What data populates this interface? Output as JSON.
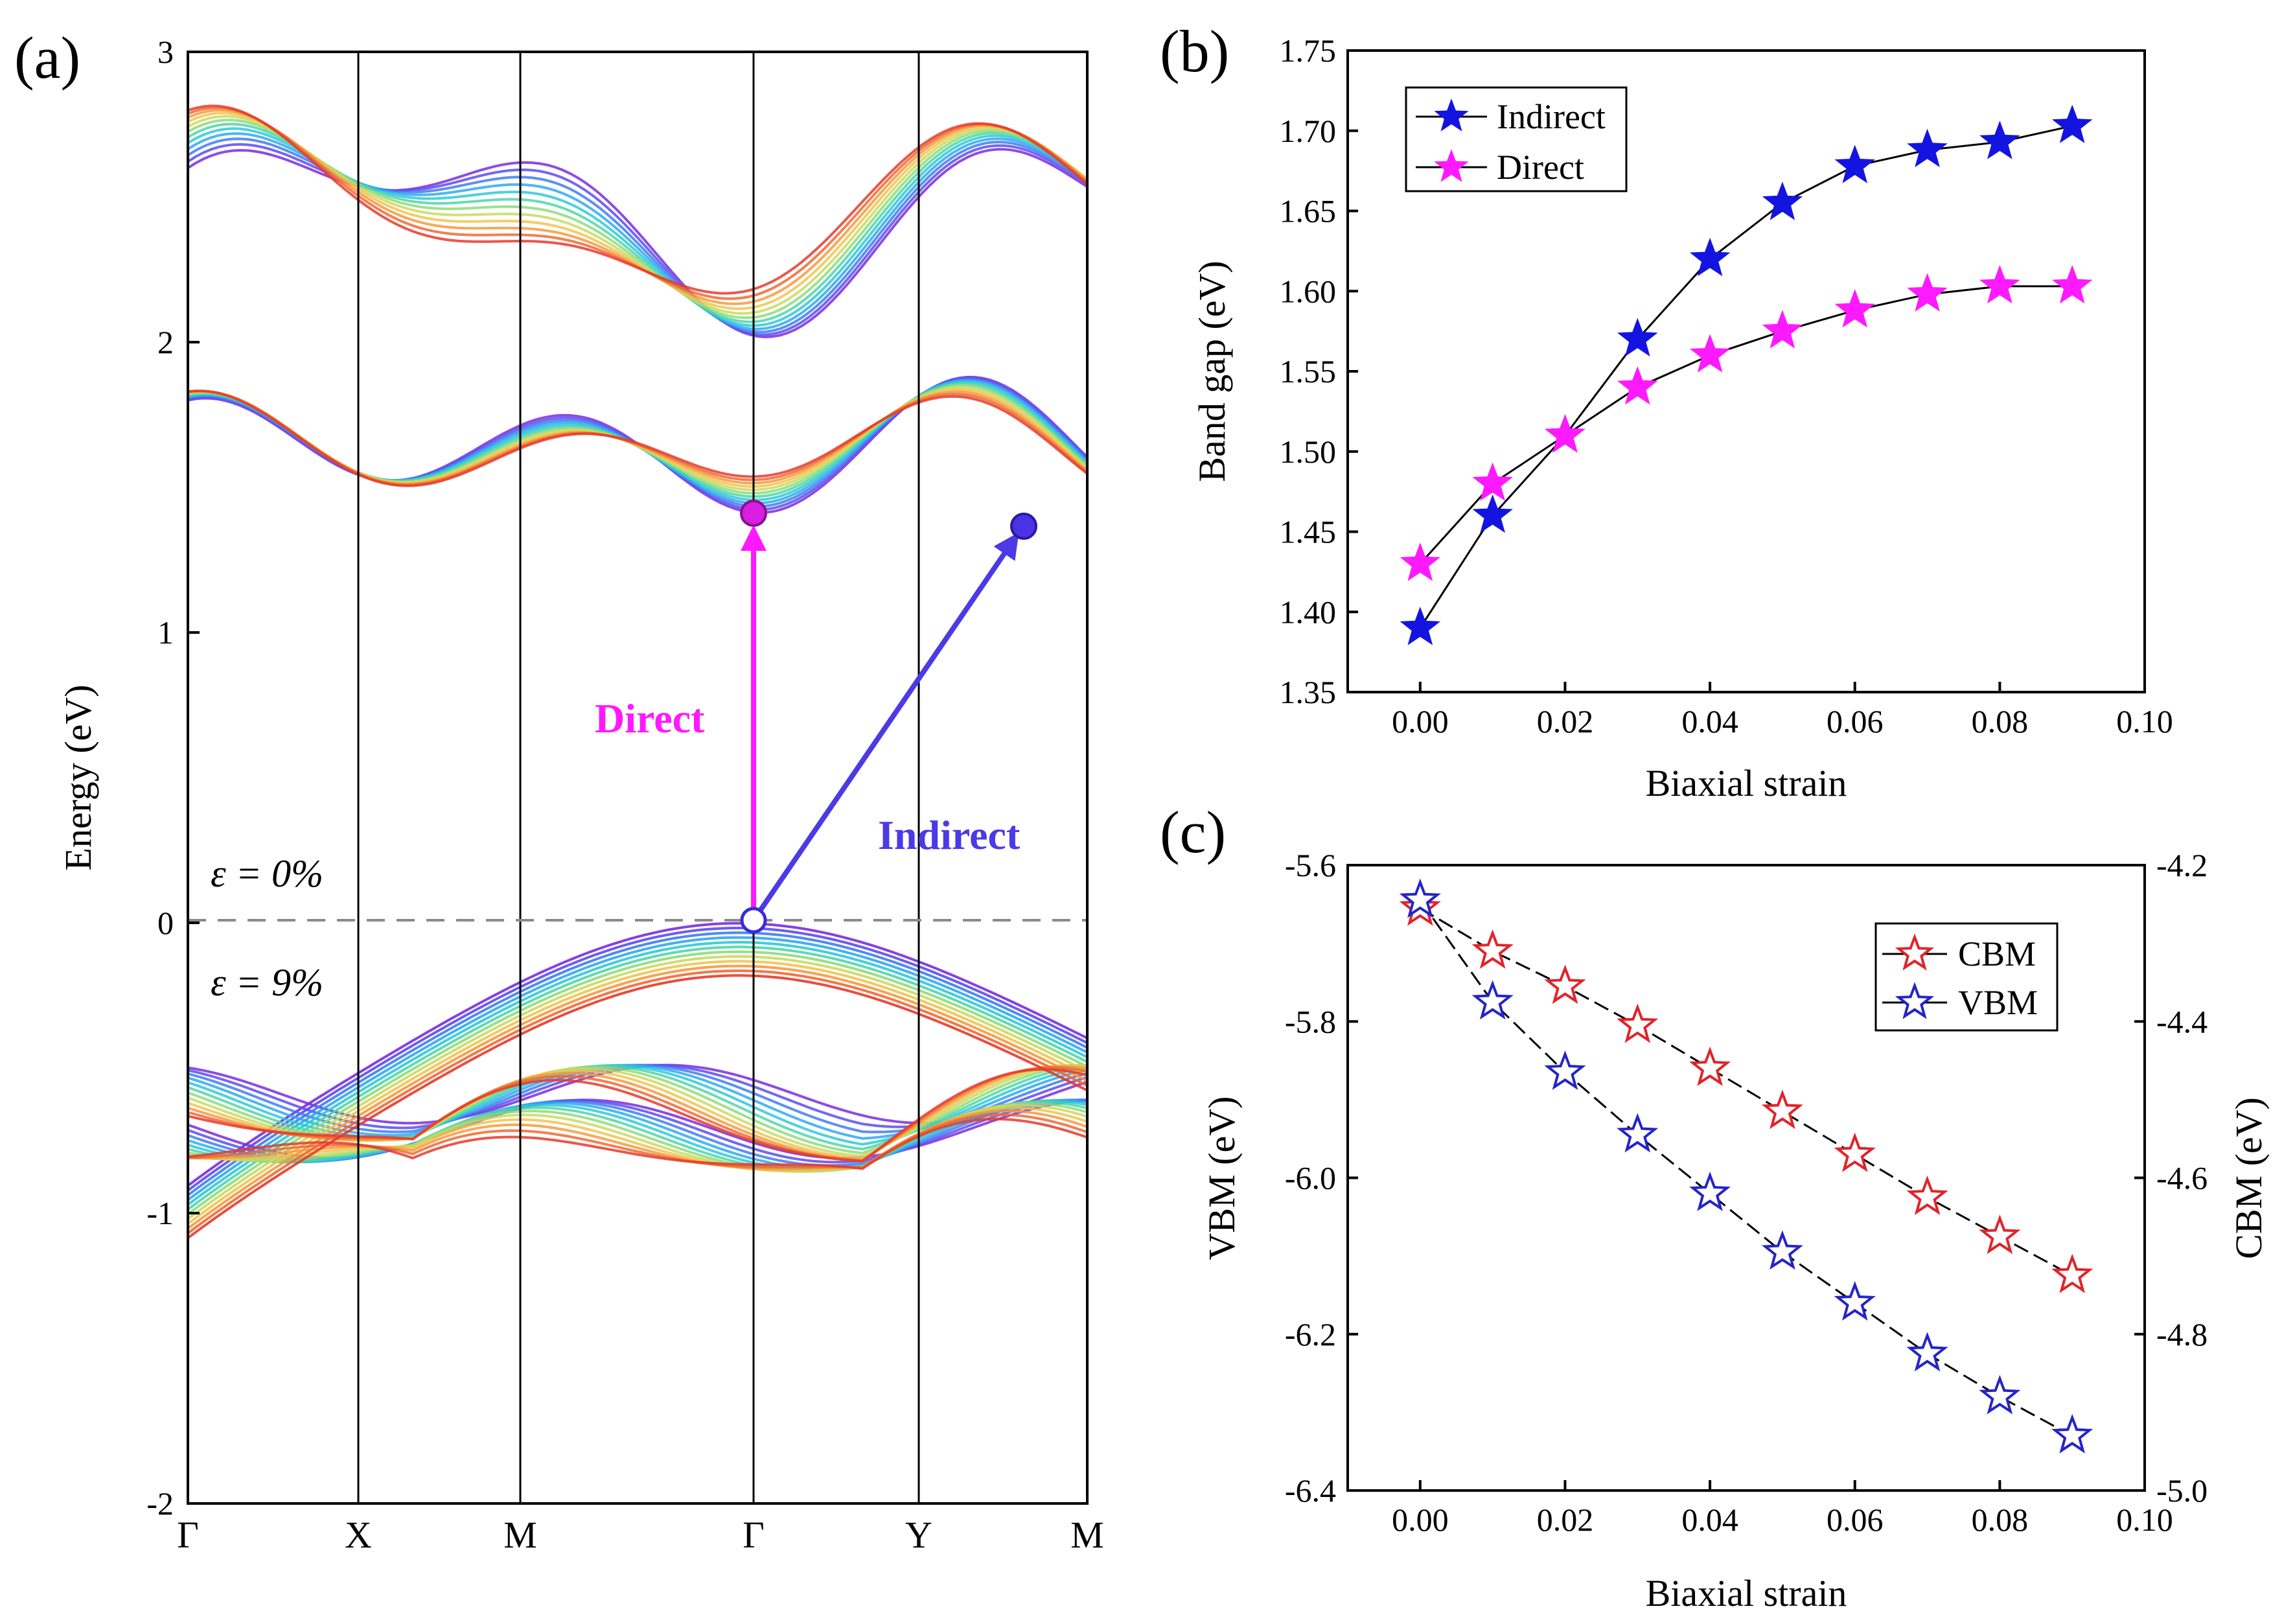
{
  "colors": {
    "indirect": "#1414e0",
    "direct": "#ff19ff",
    "cbm": "#e0242a",
    "vbm": "#2424c8",
    "arrow_direct": "#ff19ff",
    "arrow_indirect": "#4b3ae6"
  },
  "chart_data": [
    {
      "panel": "(a)",
      "type": "line",
      "ylabel": "Energy (eV)",
      "ylim": [
        -2,
        3
      ],
      "yticks": [
        "-2",
        "-1",
        "0",
        "1",
        "2",
        "3"
      ],
      "kpoints": [
        "Γ",
        "X",
        "M",
        "Γ",
        "Y",
        "M"
      ],
      "fermi_level": 0,
      "strain_labels": [
        "ε = 0%",
        "ε = 9%"
      ],
      "annotations": {
        "direct": "Direct",
        "indirect": "Indirect"
      },
      "band_edges": {
        "vbm_gamma": 0,
        "cbm_gamma": 1.4,
        "cbm_ym": 1.36
      }
    },
    {
      "panel": "(b)",
      "type": "line",
      "xlabel": "Biaxial strain",
      "ylabel": "Band gap (eV)",
      "xlim": [
        -0.01,
        0.1
      ],
      "ylim": [
        1.35,
        1.75
      ],
      "xticks": [
        "0.00",
        "0.02",
        "0.04",
        "0.06",
        "0.08",
        "0.10"
      ],
      "yticks": [
        "1.35",
        "1.40",
        "1.45",
        "1.50",
        "1.55",
        "1.60",
        "1.65",
        "1.70",
        "1.75"
      ],
      "x": [
        0.0,
        0.01,
        0.02,
        0.03,
        0.04,
        0.05,
        0.06,
        0.07,
        0.08,
        0.09
      ],
      "series": [
        {
          "name": "Indirect",
          "values": [
            1.39,
            1.46,
            1.51,
            1.57,
            1.62,
            1.655,
            1.678,
            1.688,
            1.693,
            1.703
          ]
        },
        {
          "name": "Direct",
          "values": [
            1.43,
            1.48,
            1.51,
            1.54,
            1.56,
            1.575,
            1.588,
            1.598,
            1.603,
            1.603
          ]
        }
      ]
    },
    {
      "panel": "(c)",
      "type": "line",
      "xlabel": "Biaxial strain",
      "ylabel_left": "VBM (eV)",
      "ylabel_right": "CBM (eV)",
      "xlim": [
        -0.01,
        0.1
      ],
      "ylim_left": [
        -6.4,
        -5.6
      ],
      "ylim_right": [
        -5.0,
        -4.2
      ],
      "xticks": [
        "0.00",
        "0.02",
        "0.04",
        "0.06",
        "0.08",
        "0.10"
      ],
      "yticks_left": [
        "-6.4",
        "-6.2",
        "-6.0",
        "-5.8",
        "-5.6"
      ],
      "yticks_right": [
        "-5.0",
        "-4.8",
        "-4.6",
        "-4.4",
        "-4.2"
      ],
      "x": [
        0.0,
        0.01,
        0.02,
        0.03,
        0.04,
        0.05,
        0.06,
        0.07,
        0.08,
        0.09
      ],
      "series": [
        {
          "name": "CBM",
          "axis": "right",
          "values": [
            -4.255,
            -4.31,
            -4.355,
            -4.405,
            -4.46,
            -4.515,
            -4.57,
            -4.625,
            -4.675,
            -4.725
          ]
        },
        {
          "name": "VBM",
          "axis": "left",
          "values": [
            -5.645,
            -5.775,
            -5.865,
            -5.945,
            -6.02,
            -6.095,
            -6.16,
            -6.225,
            -6.28,
            -6.33
          ]
        }
      ]
    }
  ]
}
